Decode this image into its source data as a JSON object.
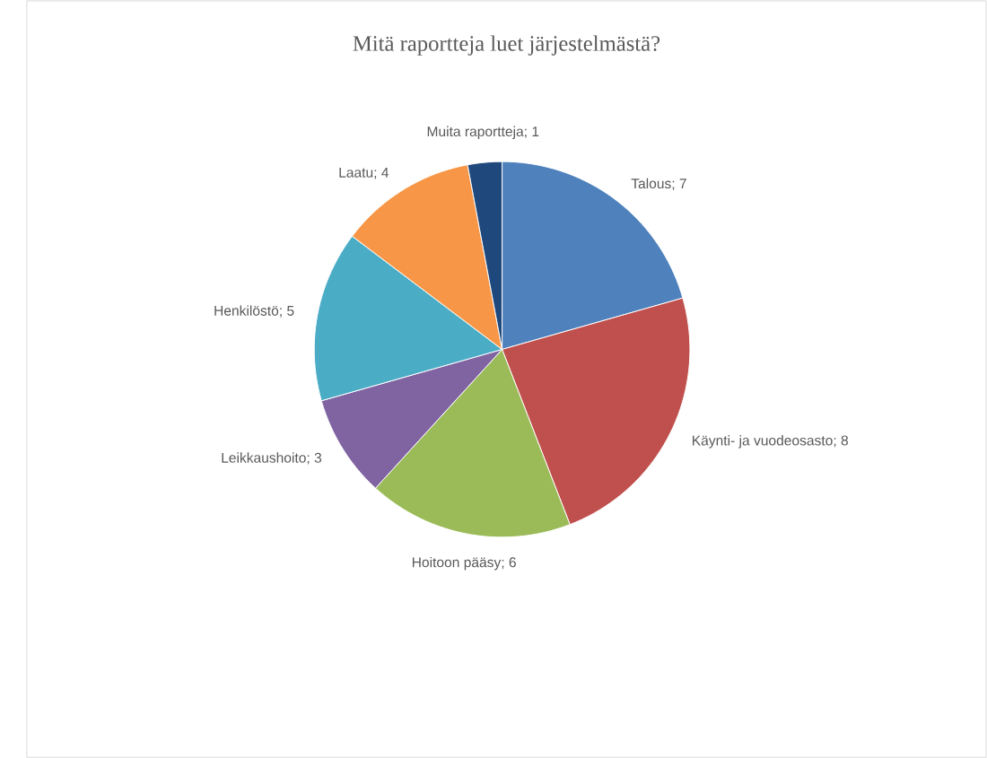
{
  "chart_data": {
    "type": "pie",
    "title": "Mitä raportteja luet järjestelmästä?",
    "categories": [
      "Talous",
      "Käynti- ja vuodeosasto",
      "Hoitoon pääsy",
      "Leikkaushoito",
      "Henkilöstö",
      "Laatu",
      "Muita raportteja"
    ],
    "values": [
      7,
      8,
      6,
      3,
      5,
      4,
      1
    ],
    "colors": [
      "#4f81bd",
      "#c0504d",
      "#9bbb59",
      "#8064a2",
      "#4bacc6",
      "#f79646",
      "#1f497d"
    ],
    "value_labels": [
      "; 7",
      "; 8",
      "; 6",
      "; 3",
      "; 5",
      "; 4",
      "; 1"
    ]
  }
}
